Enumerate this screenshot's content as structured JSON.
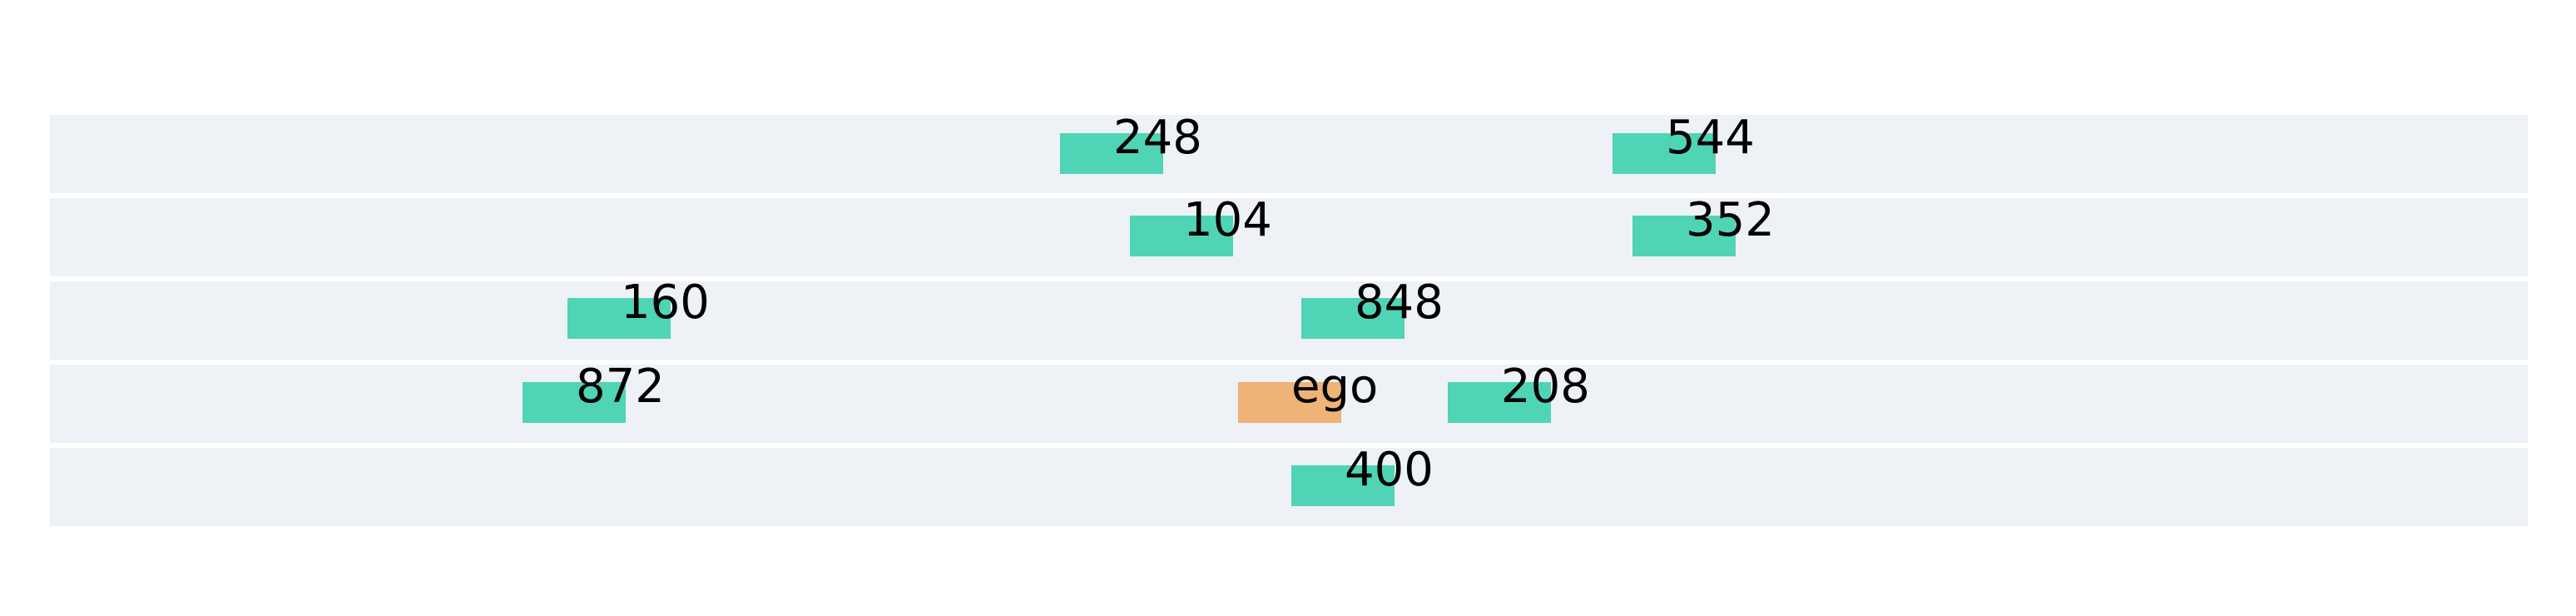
{
  "colors": {
    "background": "#ffffff",
    "lane": "#eef1f5",
    "lane_divider": "#ffffff",
    "vehicle": "#4fd4b6",
    "ego": "#efb277",
    "text": "#000000"
  },
  "lanes": [
    {
      "index": 1
    },
    {
      "index": 2
    },
    {
      "index": 3
    },
    {
      "index": 4
    },
    {
      "index": 5
    }
  ],
  "vehicles": [
    {
      "id": "248",
      "kind": "vehicle",
      "lane": 1
    },
    {
      "id": "544",
      "kind": "vehicle",
      "lane": 1
    },
    {
      "id": "104",
      "kind": "vehicle",
      "lane": 2
    },
    {
      "id": "352",
      "kind": "vehicle",
      "lane": 2
    },
    {
      "id": "160",
      "kind": "vehicle",
      "lane": 3
    },
    {
      "id": "848",
      "kind": "vehicle",
      "lane": 3
    },
    {
      "id": "872",
      "kind": "vehicle",
      "lane": 4
    },
    {
      "id": "ego",
      "kind": "ego",
      "lane": 4
    },
    {
      "id": "208",
      "kind": "vehicle",
      "lane": 4
    },
    {
      "id": "400",
      "kind": "vehicle",
      "lane": 5
    }
  ]
}
